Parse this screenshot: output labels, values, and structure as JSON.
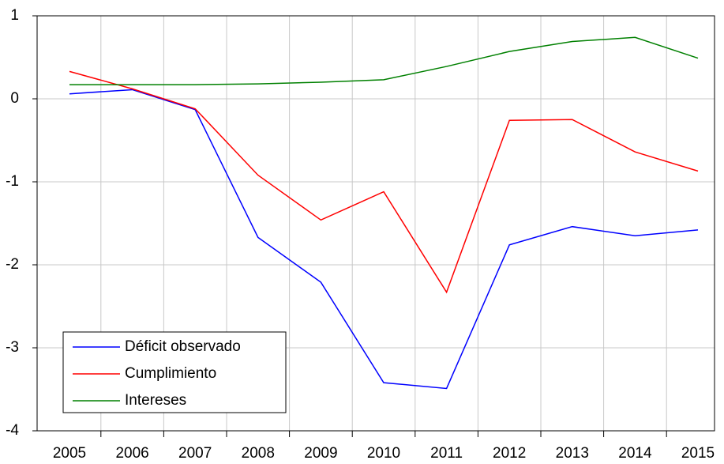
{
  "chart_data": {
    "type": "line",
    "categories": [
      "2005",
      "2006",
      "2007",
      "2008",
      "2009",
      "2010",
      "2011",
      "2012",
      "2013",
      "2014",
      "2015"
    ],
    "series": [
      {
        "name": "Déficit observado",
        "color": "#0000ff",
        "values": [
          0.06,
          0.11,
          -0.13,
          -1.67,
          -2.21,
          -3.42,
          -3.49,
          -1.76,
          -1.54,
          -1.65,
          -1.58
        ]
      },
      {
        "name": "Cumplimiento",
        "color": "#ff0000",
        "values": [
          0.33,
          0.12,
          -0.12,
          -0.92,
          -1.46,
          -1.12,
          -2.33,
          -0.26,
          -0.25,
          -0.64,
          -0.87
        ]
      },
      {
        "name": "Intereses",
        "color": "#008000",
        "values": [
          0.17,
          0.17,
          0.17,
          0.18,
          0.2,
          0.23,
          0.39,
          0.57,
          0.69,
          0.74,
          0.49
        ]
      }
    ],
    "ylim": [
      -4,
      1
    ],
    "yticks": [
      -4,
      -3,
      -2,
      -1,
      0,
      1
    ],
    "grid": true,
    "legend": "lower-left"
  }
}
